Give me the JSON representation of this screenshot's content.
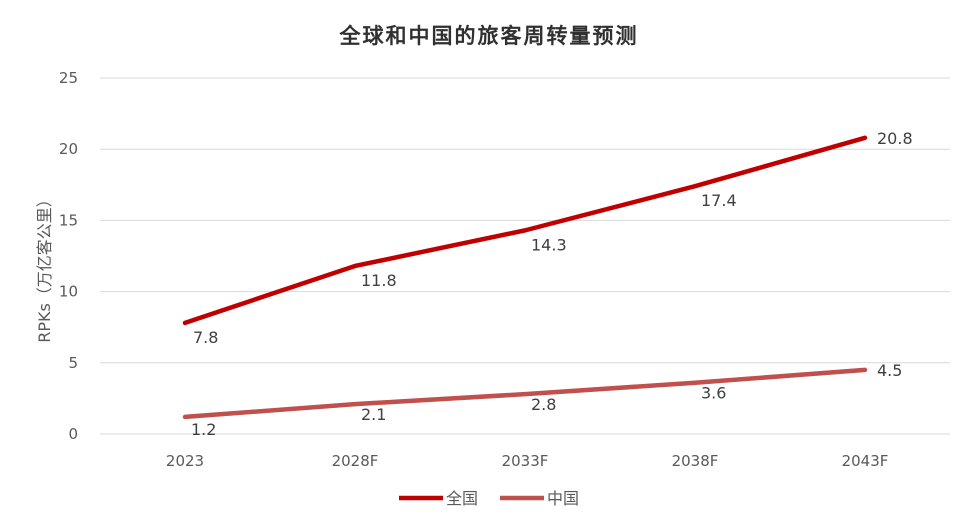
{
  "chart_data": {
    "type": "line",
    "title": "全球和中国的旅客周转量预测",
    "xlabel": "",
    "ylabel": "RPKs（万亿客公里）",
    "categories": [
      "2023",
      "2028F",
      "2033F",
      "2038F",
      "2043F"
    ],
    "ylim": [
      0,
      25
    ],
    "yticks": [
      0,
      5,
      10,
      15,
      20,
      25
    ],
    "grid": true,
    "legend_position": "bottom",
    "series": [
      {
        "name": "全国",
        "values": [
          7.8,
          11.8,
          14.3,
          17.4,
          20.8
        ],
        "labels": [
          "7.8",
          "11.8",
          "14.3",
          "17.4",
          "20.8"
        ],
        "color": "#c00000"
      },
      {
        "name": "中国",
        "values": [
          1.2,
          2.1,
          2.8,
          3.6,
          4.5
        ],
        "labels": [
          "1.2",
          "2.1",
          "2.8",
          "3.6",
          "4.5"
        ],
        "color": "#c0504d"
      }
    ]
  }
}
